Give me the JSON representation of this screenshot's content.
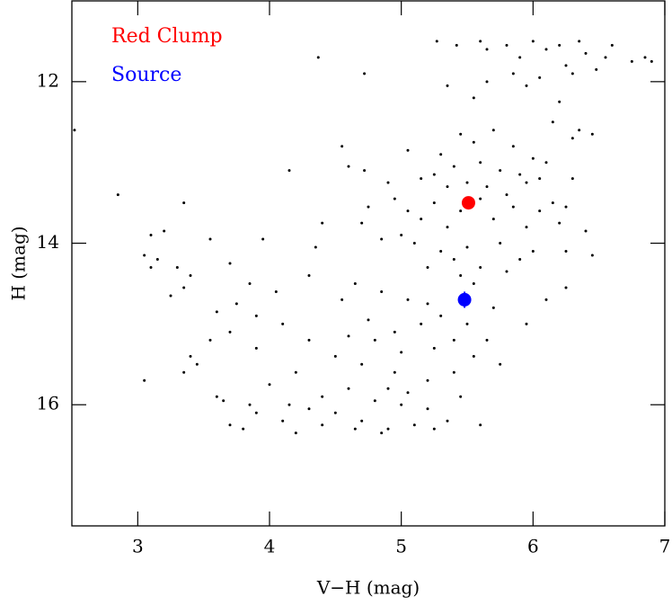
{
  "chart_data": {
    "type": "scatter",
    "xlabel": "V−H (mag)",
    "ylabel": "H (mag)",
    "xlim": [
      2.5,
      7
    ],
    "ylim": [
      17.5,
      11
    ],
    "xticks": [
      3,
      4,
      5,
      6,
      7
    ],
    "yticks": [
      12,
      14,
      16
    ],
    "color": "#000000",
    "x": [
      5.27,
      5.42,
      5.6,
      5.65,
      5.8,
      5.9,
      6.0,
      6.1,
      6.2,
      6.35,
      6.4,
      6.55,
      6.6,
      6.75,
      6.85,
      6.9,
      5.85,
      6.05,
      6.25,
      6.3,
      4.37,
      4.72,
      6.48,
      6.2,
      5.65,
      5.95,
      5.35,
      5.55,
      6.15,
      6.35,
      6.45,
      5.45,
      5.55,
      5.7,
      5.85,
      6.0,
      5.3,
      5.4,
      5.6,
      5.75,
      5.9,
      6.05,
      5.25,
      5.15,
      5.5,
      5.35,
      5.65,
      5.8,
      5.95,
      6.3,
      6.1,
      2.52,
      2.85,
      3.35,
      4.15,
      4.55,
      4.6,
      4.72,
      5.05,
      4.9,
      4.95,
      5.05,
      5.15,
      5.25,
      5.35,
      5.45,
      5.6,
      5.7,
      5.85,
      5.95,
      6.05,
      6.15,
      5.0,
      5.1,
      5.3,
      5.4,
      5.5,
      5.6,
      5.75,
      5.9,
      6.0,
      6.2,
      6.4,
      6.45,
      4.75,
      4.85,
      5.2,
      5.45,
      5.55,
      5.8,
      6.25,
      6.3,
      6.25,
      4.7,
      4.4,
      4.35,
      3.1,
      3.15,
      3.05,
      3.2,
      3.1,
      3.3,
      3.4,
      3.55,
      3.7,
      3.95,
      3.25,
      3.35,
      3.85,
      3.6,
      3.75,
      4.05,
      4.3,
      4.65,
      4.85,
      5.05,
      5.2,
      5.3,
      5.15,
      4.95,
      4.8,
      5.0,
      5.25,
      5.4,
      5.55,
      5.65,
      5.75,
      5.4,
      5.2,
      4.9,
      4.7,
      4.5,
      4.3,
      4.1,
      3.9,
      3.7,
      3.55,
      3.4,
      3.35,
      3.05,
      3.45,
      3.9,
      4.2,
      4.0,
      4.4,
      4.6,
      4.8,
      5.0,
      5.2,
      5.35,
      5.1,
      4.9,
      4.7,
      4.5,
      4.3,
      4.1,
      3.9,
      3.7,
      3.6,
      3.8,
      4.2,
      4.4,
      4.65,
      4.85,
      5.25,
      5.45,
      5.6,
      5.5,
      5.7,
      6.1,
      6.25,
      5.95,
      4.15,
      4.75,
      4.55,
      3.65,
      3.85,
      4.95,
      5.05,
      4.6
    ],
    "values": [
      11.5,
      11.55,
      11.5,
      11.6,
      11.55,
      11.7,
      11.5,
      11.6,
      11.55,
      11.5,
      11.65,
      11.7,
      11.55,
      11.75,
      11.7,
      11.75,
      11.9,
      11.95,
      11.8,
      11.9,
      11.7,
      11.9,
      11.85,
      12.25,
      12.0,
      12.05,
      12.05,
      12.2,
      12.5,
      12.6,
      12.65,
      12.65,
      12.75,
      12.6,
      12.8,
      12.95,
      12.9,
      13.05,
      13.0,
      13.1,
      13.15,
      13.2,
      13.15,
      13.2,
      13.25,
      13.3,
      13.3,
      13.4,
      13.25,
      12.7,
      13.0,
      12.6,
      13.4,
      13.5,
      13.1,
      12.8,
      13.05,
      13.1,
      12.85,
      13.25,
      13.45,
      13.6,
      13.7,
      13.5,
      13.8,
      13.6,
      13.45,
      13.7,
      13.55,
      13.8,
      13.6,
      13.5,
      13.9,
      14.0,
      14.1,
      14.2,
      14.05,
      14.3,
      14.0,
      14.2,
      14.1,
      13.75,
      13.85,
      14.15,
      13.55,
      13.95,
      14.3,
      14.4,
      14.5,
      14.35,
      14.1,
      13.2,
      13.55,
      13.75,
      13.75,
      14.05,
      13.9,
      14.2,
      14.15,
      13.85,
      14.3,
      14.3,
      14.4,
      13.95,
      14.25,
      13.95,
      14.65,
      14.55,
      14.5,
      14.85,
      14.75,
      14.6,
      14.4,
      14.5,
      14.6,
      14.7,
      14.75,
      14.9,
      15.0,
      15.1,
      15.2,
      15.35,
      15.3,
      15.2,
      15.4,
      15.2,
      15.5,
      15.6,
      15.7,
      15.8,
      15.5,
      15.4,
      15.2,
      15.0,
      14.9,
      15.1,
      15.2,
      15.4,
      15.6,
      15.7,
      15.5,
      15.3,
      15.6,
      15.75,
      15.9,
      15.8,
      15.95,
      16.0,
      16.05,
      16.2,
      16.25,
      16.3,
      16.2,
      16.1,
      16.05,
      16.2,
      16.1,
      16.25,
      15.9,
      16.3,
      16.35,
      16.25,
      16.3,
      16.35,
      16.3,
      15.9,
      16.25,
      15.0,
      14.8,
      14.7,
      14.55,
      15.0,
      16.0,
      14.95,
      14.7,
      15.95,
      16.0,
      15.6,
      15.85,
      15.15
    ],
    "highlights": [
      {
        "name": "Red Clump",
        "color": "#ff0000",
        "x": 5.51,
        "y": 13.5
      },
      {
        "name": "Source",
        "color": "#0000ff",
        "x": 5.48,
        "y": 14.7,
        "yerr": 0.1
      }
    ]
  }
}
